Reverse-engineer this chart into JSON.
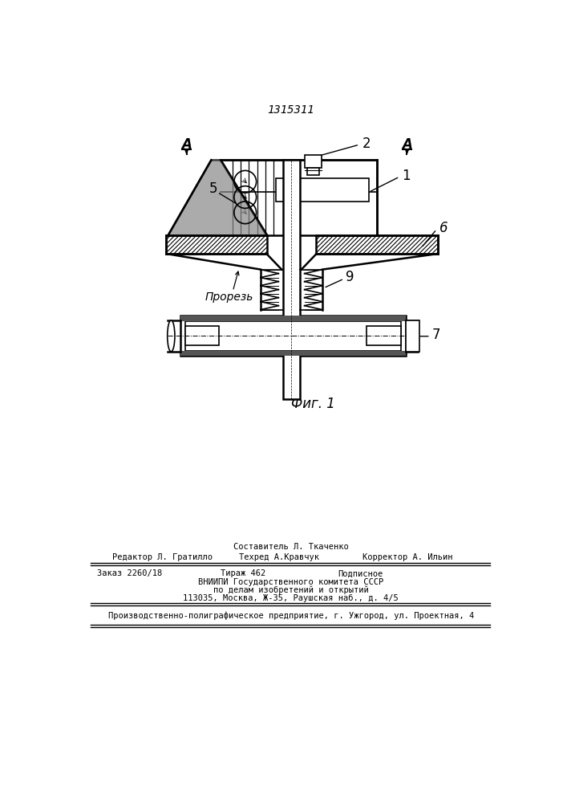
{
  "patent_number": "1315311",
  "fig_label": "Фиг. 1",
  "background_color": "#ffffff",
  "line_color": "#000000",
  "labels": {
    "A_left": "A",
    "A_right": "A",
    "label_1": "1",
    "label_2": "2",
    "label_5": "5",
    "label_6": "6",
    "label_7": "7",
    "label_9": "9",
    "prozrez": "Прорезь"
  },
  "footer": {
    "sostavitel": "Составитель Л. Ткаченко",
    "redaktor": "Редактор Л. Гратилло",
    "tehred": "Техред А.Кравчук",
    "korrektor": "Корректор А. Ильин",
    "zakaz": "Заказ 2260/18",
    "tirazh": "Тираж 462",
    "podpisnoe": "Подписное",
    "vniip1": "ВНИИПИ Государственного комитета СССР",
    "vniip2": "по делам изобретений и открытий",
    "vniip3": "113035, Москва, Ж-35, Раушская наб., д. 4/5",
    "predpr": "Производственно-полиграфическое предприятие, г. Ужгород, ул. Проектная, 4"
  }
}
